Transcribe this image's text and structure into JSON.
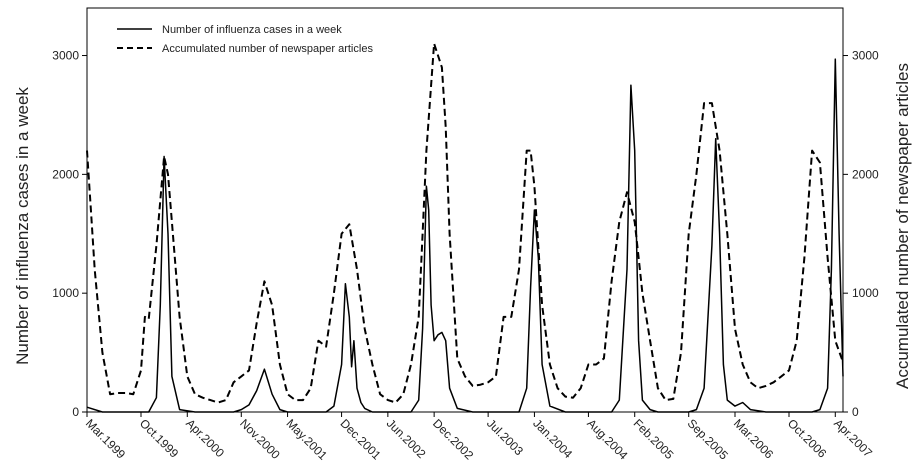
{
  "chart_data": {
    "type": "line",
    "ylabel": "Number of influenza cases in a week",
    "y2label": "Accumulated number of newspaper articles",
    "ylim": [
      0,
      3400
    ],
    "y2lim": [
      0,
      3400
    ],
    "yticks": [
      "0",
      "1000",
      "2000",
      "3000"
    ],
    "y2ticks": [
      "0",
      "1000",
      "2000",
      "3000"
    ],
    "xlim": [
      0,
      98
    ],
    "x_tick_labels": [
      "Mar.1999",
      "Oct.1999",
      "Apr.2000",
      "Nov.2000",
      "May.2001",
      "Dec.2001",
      "Jun.2002",
      "Dec.2002",
      "Jul.2003",
      "Jan.2004",
      "Aug.2004",
      "Feb.2005",
      "Sep.2005",
      "Mar.2006",
      "Oct.2006",
      "Apr.2007"
    ],
    "x_tick_positions": [
      0,
      7,
      13,
      20,
      26,
      33,
      39,
      45,
      52,
      58,
      65,
      71,
      78,
      84,
      91,
      97
    ],
    "legend_position": "top-left",
    "series": [
      {
        "name": "Number of influenza cases in a week",
        "style": "solid",
        "x": [
          0,
          2,
          4,
          6,
          8,
          9,
          9.5,
          10,
          10.5,
          11,
          12,
          14,
          16,
          18,
          19,
          20,
          21,
          22,
          23,
          24,
          25,
          26,
          27,
          28,
          29,
          30,
          31,
          32,
          33,
          33.5,
          34,
          34.3,
          34.6,
          35,
          35.5,
          36,
          37,
          38,
          40,
          42,
          43,
          43.5,
          44,
          44.3,
          44.6,
          45,
          45.5,
          46,
          46.5,
          47,
          48,
          50,
          52,
          54,
          56,
          57,
          57.5,
          58,
          58.5,
          59,
          60,
          62,
          64,
          66,
          67,
          68,
          69,
          70,
          70.5,
          71,
          71.5,
          72,
          73,
          74,
          76,
          78,
          79,
          80,
          81,
          81.5,
          82,
          82.5,
          83,
          84,
          85,
          86,
          88,
          90,
          92,
          94,
          95,
          96,
          96.5,
          97,
          97.5,
          98
        ],
        "values": [
          40,
          0,
          0,
          0,
          0,
          120,
          900,
          2150,
          1500,
          300,
          20,
          0,
          0,
          0,
          0,
          20,
          60,
          180,
          360,
          150,
          20,
          0,
          0,
          0,
          0,
          0,
          0,
          50,
          400,
          1080,
          800,
          380,
          600,
          200,
          80,
          30,
          0,
          0,
          0,
          0,
          100,
          700,
          1900,
          1700,
          900,
          600,
          650,
          670,
          600,
          200,
          30,
          0,
          0,
          0,
          0,
          200,
          1050,
          1700,
          1300,
          400,
          50,
          0,
          0,
          0,
          0,
          0,
          100,
          1200,
          2750,
          2200,
          600,
          100,
          20,
          0,
          0,
          0,
          20,
          200,
          1400,
          2300,
          1500,
          400,
          100,
          50,
          80,
          20,
          0,
          0,
          0,
          0,
          20,
          200,
          1200,
          2970,
          1500,
          300
        ]
      },
      {
        "name": "Accumulated number of newspaper articles",
        "style": "dashed",
        "x": [
          0,
          0.5,
          1,
          2,
          3,
          4,
          5,
          6,
          7,
          7.5,
          8,
          9,
          10,
          10.5,
          11,
          12,
          13,
          14,
          15,
          16,
          17,
          18,
          19,
          20,
          21,
          22,
          23,
          24,
          25,
          26,
          27,
          28,
          29,
          30,
          31,
          32,
          33,
          34,
          35,
          36,
          37,
          38,
          39,
          40,
          41,
          42,
          43,
          43.5,
          44,
          45,
          46,
          46.5,
          47,
          48,
          49,
          50,
          51,
          52,
          53,
          54,
          55,
          56,
          57,
          57.5,
          58,
          59,
          60,
          61,
          62,
          63,
          64,
          65,
          66,
          67,
          68,
          69,
          70,
          71,
          71.5,
          72,
          73,
          74,
          75,
          76,
          77,
          78,
          79,
          80,
          81,
          82,
          83,
          84,
          85,
          86,
          87,
          88,
          89,
          90,
          91,
          92,
          93,
          94,
          95,
          96,
          97,
          98
        ],
        "values": [
          2200,
          1700,
          1200,
          500,
          150,
          160,
          160,
          150,
          350,
          800,
          780,
          1400,
          2150,
          2000,
          1600,
          800,
          300,
          150,
          120,
          100,
          80,
          100,
          250,
          300,
          350,
          750,
          1100,
          900,
          400,
          150,
          100,
          100,
          200,
          600,
          550,
          1000,
          1500,
          1580,
          1200,
          700,
          400,
          150,
          100,
          80,
          150,
          400,
          800,
          1500,
          2200,
          3100,
          2900,
          2400,
          1500,
          450,
          300,
          220,
          230,
          250,
          300,
          800,
          800,
          1200,
          2200,
          2200,
          1900,
          900,
          400,
          200,
          130,
          120,
          200,
          400,
          400,
          450,
          1100,
          1600,
          1850,
          1600,
          1300,
          1000,
          600,
          200,
          100,
          110,
          500,
          1500,
          2000,
          2600,
          2600,
          2200,
          1500,
          700,
          400,
          250,
          200,
          220,
          250,
          300,
          350,
          600,
          1300,
          2200,
          2100,
          1300,
          600,
          420
        ]
      }
    ]
  }
}
